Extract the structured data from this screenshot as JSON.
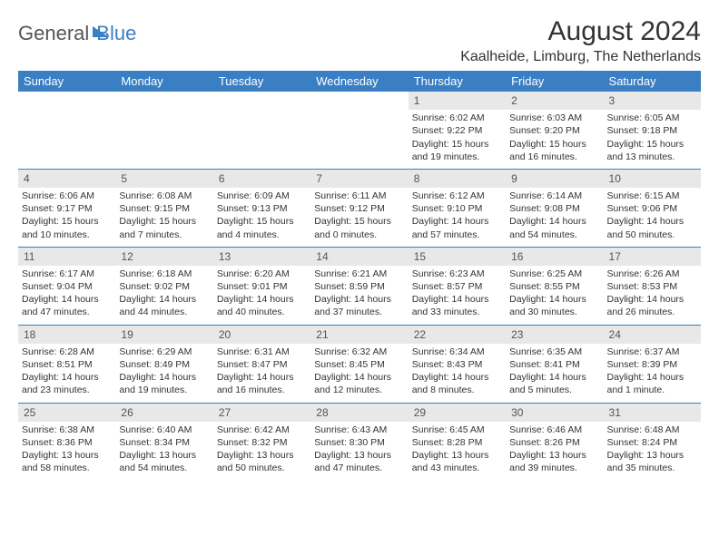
{
  "logo": {
    "part1": "General",
    "part2": "Blue"
  },
  "title": "August 2024",
  "location": "Kaalheide, Limburg, The Netherlands",
  "colors": {
    "header_bg": "#3a7fc4",
    "header_text": "#ffffff",
    "daynum_bg": "#e8e8e8",
    "border": "#3a7fc4",
    "text": "#333333"
  },
  "typography": {
    "title_fontsize": 30,
    "location_fontsize": 16,
    "th_fontsize": 13,
    "cell_fontsize": 10.5
  },
  "weekdays": [
    "Sunday",
    "Monday",
    "Tuesday",
    "Wednesday",
    "Thursday",
    "Friday",
    "Saturday"
  ],
  "weeks": [
    {
      "nums": [
        "",
        "",
        "",
        "",
        "1",
        "2",
        "3"
      ],
      "details": [
        {
          "sunrise": "",
          "sunset": "",
          "daylight": ""
        },
        {
          "sunrise": "",
          "sunset": "",
          "daylight": ""
        },
        {
          "sunrise": "",
          "sunset": "",
          "daylight": ""
        },
        {
          "sunrise": "",
          "sunset": "",
          "daylight": ""
        },
        {
          "sunrise": "Sunrise: 6:02 AM",
          "sunset": "Sunset: 9:22 PM",
          "daylight": "Daylight: 15 hours and 19 minutes."
        },
        {
          "sunrise": "Sunrise: 6:03 AM",
          "sunset": "Sunset: 9:20 PM",
          "daylight": "Daylight: 15 hours and 16 minutes."
        },
        {
          "sunrise": "Sunrise: 6:05 AM",
          "sunset": "Sunset: 9:18 PM",
          "daylight": "Daylight: 15 hours and 13 minutes."
        }
      ]
    },
    {
      "nums": [
        "4",
        "5",
        "6",
        "7",
        "8",
        "9",
        "10"
      ],
      "details": [
        {
          "sunrise": "Sunrise: 6:06 AM",
          "sunset": "Sunset: 9:17 PM",
          "daylight": "Daylight: 15 hours and 10 minutes."
        },
        {
          "sunrise": "Sunrise: 6:08 AM",
          "sunset": "Sunset: 9:15 PM",
          "daylight": "Daylight: 15 hours and 7 minutes."
        },
        {
          "sunrise": "Sunrise: 6:09 AM",
          "sunset": "Sunset: 9:13 PM",
          "daylight": "Daylight: 15 hours and 4 minutes."
        },
        {
          "sunrise": "Sunrise: 6:11 AM",
          "sunset": "Sunset: 9:12 PM",
          "daylight": "Daylight: 15 hours and 0 minutes."
        },
        {
          "sunrise": "Sunrise: 6:12 AM",
          "sunset": "Sunset: 9:10 PM",
          "daylight": "Daylight: 14 hours and 57 minutes."
        },
        {
          "sunrise": "Sunrise: 6:14 AM",
          "sunset": "Sunset: 9:08 PM",
          "daylight": "Daylight: 14 hours and 54 minutes."
        },
        {
          "sunrise": "Sunrise: 6:15 AM",
          "sunset": "Sunset: 9:06 PM",
          "daylight": "Daylight: 14 hours and 50 minutes."
        }
      ]
    },
    {
      "nums": [
        "11",
        "12",
        "13",
        "14",
        "15",
        "16",
        "17"
      ],
      "details": [
        {
          "sunrise": "Sunrise: 6:17 AM",
          "sunset": "Sunset: 9:04 PM",
          "daylight": "Daylight: 14 hours and 47 minutes."
        },
        {
          "sunrise": "Sunrise: 6:18 AM",
          "sunset": "Sunset: 9:02 PM",
          "daylight": "Daylight: 14 hours and 44 minutes."
        },
        {
          "sunrise": "Sunrise: 6:20 AM",
          "sunset": "Sunset: 9:01 PM",
          "daylight": "Daylight: 14 hours and 40 minutes."
        },
        {
          "sunrise": "Sunrise: 6:21 AM",
          "sunset": "Sunset: 8:59 PM",
          "daylight": "Daylight: 14 hours and 37 minutes."
        },
        {
          "sunrise": "Sunrise: 6:23 AM",
          "sunset": "Sunset: 8:57 PM",
          "daylight": "Daylight: 14 hours and 33 minutes."
        },
        {
          "sunrise": "Sunrise: 6:25 AM",
          "sunset": "Sunset: 8:55 PM",
          "daylight": "Daylight: 14 hours and 30 minutes."
        },
        {
          "sunrise": "Sunrise: 6:26 AM",
          "sunset": "Sunset: 8:53 PM",
          "daylight": "Daylight: 14 hours and 26 minutes."
        }
      ]
    },
    {
      "nums": [
        "18",
        "19",
        "20",
        "21",
        "22",
        "23",
        "24"
      ],
      "details": [
        {
          "sunrise": "Sunrise: 6:28 AM",
          "sunset": "Sunset: 8:51 PM",
          "daylight": "Daylight: 14 hours and 23 minutes."
        },
        {
          "sunrise": "Sunrise: 6:29 AM",
          "sunset": "Sunset: 8:49 PM",
          "daylight": "Daylight: 14 hours and 19 minutes."
        },
        {
          "sunrise": "Sunrise: 6:31 AM",
          "sunset": "Sunset: 8:47 PM",
          "daylight": "Daylight: 14 hours and 16 minutes."
        },
        {
          "sunrise": "Sunrise: 6:32 AM",
          "sunset": "Sunset: 8:45 PM",
          "daylight": "Daylight: 14 hours and 12 minutes."
        },
        {
          "sunrise": "Sunrise: 6:34 AM",
          "sunset": "Sunset: 8:43 PM",
          "daylight": "Daylight: 14 hours and 8 minutes."
        },
        {
          "sunrise": "Sunrise: 6:35 AM",
          "sunset": "Sunset: 8:41 PM",
          "daylight": "Daylight: 14 hours and 5 minutes."
        },
        {
          "sunrise": "Sunrise: 6:37 AM",
          "sunset": "Sunset: 8:39 PM",
          "daylight": "Daylight: 14 hours and 1 minute."
        }
      ]
    },
    {
      "nums": [
        "25",
        "26",
        "27",
        "28",
        "29",
        "30",
        "31"
      ],
      "details": [
        {
          "sunrise": "Sunrise: 6:38 AM",
          "sunset": "Sunset: 8:36 PM",
          "daylight": "Daylight: 13 hours and 58 minutes."
        },
        {
          "sunrise": "Sunrise: 6:40 AM",
          "sunset": "Sunset: 8:34 PM",
          "daylight": "Daylight: 13 hours and 54 minutes."
        },
        {
          "sunrise": "Sunrise: 6:42 AM",
          "sunset": "Sunset: 8:32 PM",
          "daylight": "Daylight: 13 hours and 50 minutes."
        },
        {
          "sunrise": "Sunrise: 6:43 AM",
          "sunset": "Sunset: 8:30 PM",
          "daylight": "Daylight: 13 hours and 47 minutes."
        },
        {
          "sunrise": "Sunrise: 6:45 AM",
          "sunset": "Sunset: 8:28 PM",
          "daylight": "Daylight: 13 hours and 43 minutes."
        },
        {
          "sunrise": "Sunrise: 6:46 AM",
          "sunset": "Sunset: 8:26 PM",
          "daylight": "Daylight: 13 hours and 39 minutes."
        },
        {
          "sunrise": "Sunrise: 6:48 AM",
          "sunset": "Sunset: 8:24 PM",
          "daylight": "Daylight: 13 hours and 35 minutes."
        }
      ]
    }
  ]
}
